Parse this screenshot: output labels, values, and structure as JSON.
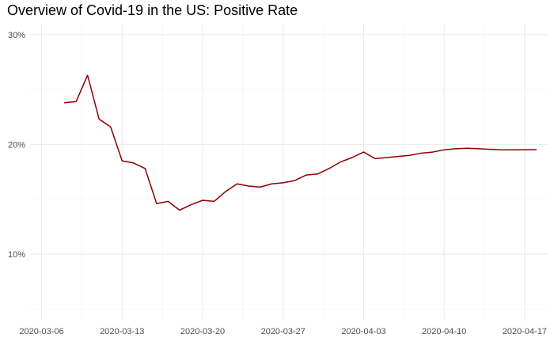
{
  "chart_data": {
    "type": "line",
    "title": "Overview of Covid-19 in the US: Positive Rate",
    "xlabel": "",
    "ylabel": "",
    "x_type": "date",
    "xlim": [
      "2020-03-05",
      "2020-04-19"
    ],
    "ylim": [
      0.04,
      0.31
    ],
    "x_ticks": [
      "2020-03-06",
      "2020-03-13",
      "2020-03-20",
      "2020-03-27",
      "2020-04-03",
      "2020-04-10",
      "2020-04-17"
    ],
    "y_ticks": [
      0.1,
      0.2,
      0.3
    ],
    "y_tick_labels": [
      "10%",
      "20%",
      "30%"
    ],
    "grid": true,
    "legend": "none",
    "series": [
      {
        "color": "#8b0000",
        "x": [
          "2020-03-08",
          "2020-03-09",
          "2020-03-10",
          "2020-03-11",
          "2020-03-12",
          "2020-03-13",
          "2020-03-14",
          "2020-03-15",
          "2020-03-16",
          "2020-03-17",
          "2020-03-18",
          "2020-03-19",
          "2020-03-20",
          "2020-03-21",
          "2020-03-22",
          "2020-03-23",
          "2020-03-24",
          "2020-03-25",
          "2020-03-26",
          "2020-03-27",
          "2020-03-28",
          "2020-03-29",
          "2020-03-30",
          "2020-03-31",
          "2020-04-01",
          "2020-04-02",
          "2020-04-03",
          "2020-04-04",
          "2020-04-05",
          "2020-04-06",
          "2020-04-07",
          "2020-04-08",
          "2020-04-09",
          "2020-04-10",
          "2020-04-11",
          "2020-04-12",
          "2020-04-13",
          "2020-04-14",
          "2020-04-15",
          "2020-04-16",
          "2020-04-17",
          "2020-04-18"
        ],
        "y": [
          0.238,
          0.239,
          0.263,
          0.223,
          0.216,
          0.185,
          0.183,
          0.178,
          0.146,
          0.148,
          0.14,
          0.145,
          0.149,
          0.148,
          0.157,
          0.164,
          0.162,
          0.161,
          0.164,
          0.165,
          0.167,
          0.172,
          0.173,
          0.178,
          0.184,
          0.188,
          0.193,
          0.187,
          0.188,
          0.189,
          0.19,
          0.192,
          0.193,
          0.195,
          0.196,
          0.1965,
          0.196,
          0.1955,
          0.195,
          0.195,
          0.195,
          0.1952
        ]
      }
    ]
  }
}
